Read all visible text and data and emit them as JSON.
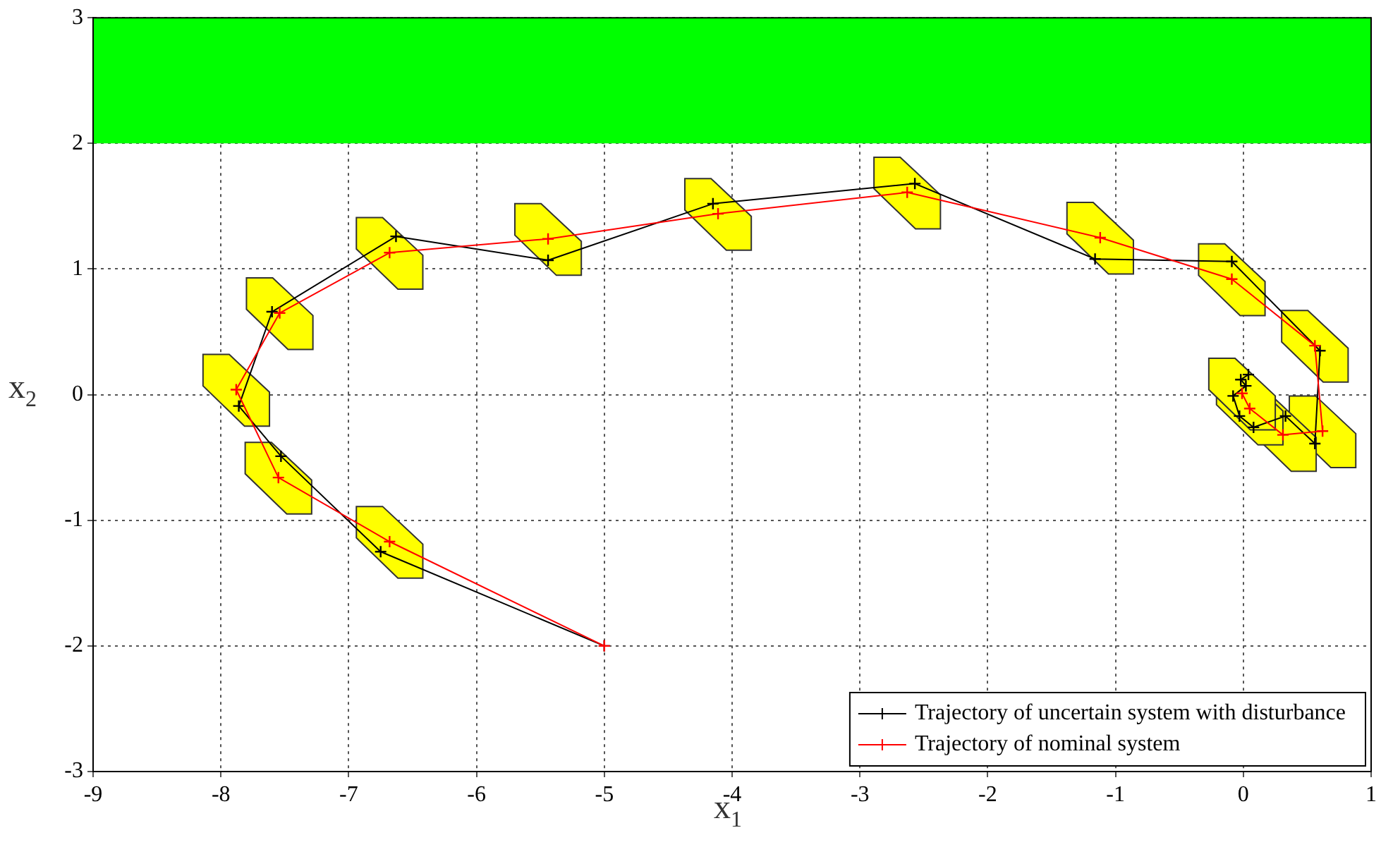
{
  "chart_data": {
    "type": "line",
    "xlabel": "x$_{1}$",
    "ylabel": "x$_{2}$",
    "xlim": [
      -9,
      1
    ],
    "xticks": [
      -9,
      -8,
      -7,
      -6,
      -5,
      -4,
      -3,
      -2,
      -1,
      0,
      1
    ],
    "ylim": [
      -3,
      3
    ],
    "yticks": [
      -3,
      -2,
      -1,
      0,
      1,
      2,
      3
    ],
    "grid": true,
    "legend": "bottom right",
    "marker": "cross",
    "line_style": "solid",
    "bands": [
      {
        "axis": "y",
        "from": 2,
        "to": 3,
        "color": "#00ff00"
      }
    ],
    "series": [
      {
        "name": "Trajectory of uncertain system with disturbance",
        "color": "#000000",
        "x": [
          -5,
          -6.75,
          -7.53,
          -7.86,
          -7.6,
          -6.63,
          -5.44,
          -4.15,
          -2.57,
          -1.16,
          -0.09,
          0.6,
          0.56,
          0.33,
          0.08,
          -0.03,
          -0.08,
          0.02,
          -0.02,
          0.04
        ],
        "values": [
          -2,
          -1.25,
          -0.49,
          -0.09,
          0.66,
          1.26,
          1.07,
          1.52,
          1.68,
          1.08,
          1.06,
          0.35,
          -0.39,
          -0.17,
          -0.26,
          -0.17,
          -0.01,
          0.07,
          0.12,
          0.16
        ]
      },
      {
        "name": "Trajectory of nominal system",
        "color": "#ff0000",
        "x": [
          -5,
          -6.68,
          -7.55,
          -7.88,
          -7.54,
          -6.68,
          -5.44,
          -4.11,
          -2.63,
          -1.12,
          -0.09,
          0.56,
          0.62,
          0.31,
          0.05,
          -0.01
        ],
        "values": [
          -2,
          -1.17,
          -0.66,
          0.04,
          0.65,
          1.13,
          1.24,
          1.44,
          1.61,
          1.25,
          0.92,
          0.39,
          -0.29,
          -0.32,
          -0.11,
          0.01
        ]
      },
      {
        "type": "scatter",
        "color": "#ffff00",
        "x": [
          -6.68,
          -7.55,
          -7.88,
          -7.54,
          -6.68,
          -5.44,
          -4.11,
          -2.63,
          -1.12,
          -0.09,
          0.56,
          0.62,
          0.31,
          0.05,
          -0.01
        ],
        "values": [
          -1.17,
          -0.66,
          0.04,
          0.65,
          1.13,
          1.24,
          1.44,
          1.61,
          1.25,
          0.92,
          0.39,
          -0.29,
          -0.32,
          -0.11,
          0.01
        ]
      }
    ]
  }
}
